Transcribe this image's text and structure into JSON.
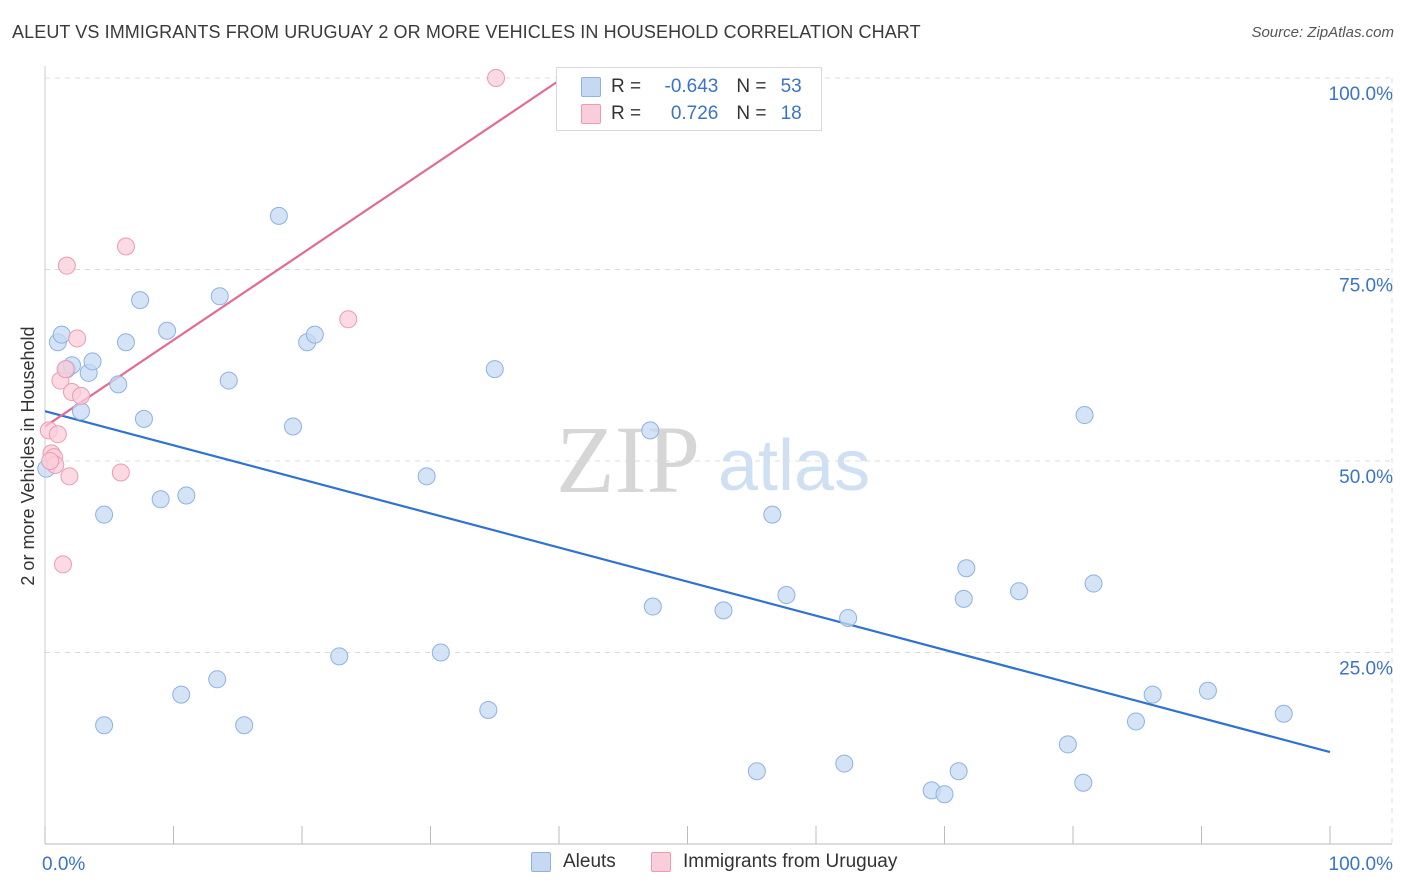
{
  "title": "ALEUT VS IMMIGRANTS FROM URUGUAY 2 OR MORE VEHICLES IN HOUSEHOLD CORRELATION CHART",
  "source": "Source: ZipAtlas.com",
  "watermark": {
    "zip": "ZIP",
    "atlas": "atlas"
  },
  "legend_top": [
    {
      "r_label": "R = ",
      "r_value": "-0.643",
      "n_label": "N = ",
      "n_value": "53",
      "color": "#a9c7ee"
    },
    {
      "r_label": "R = ",
      "r_value": "0.726",
      "n_label": "N = ",
      "n_value": "18",
      "color": "#f7b8cb"
    }
  ],
  "legend_bottom": [
    {
      "label": "Aleuts",
      "color": "#a9c7ee"
    },
    {
      "label": "Immigrants from Uruguay",
      "color": "#f7b8cb"
    }
  ],
  "colors": {
    "blue_fill": "#c5d9f3",
    "blue_stroke": "#8fb2e2",
    "blue_line": "#2f72d0",
    "pink_fill": "#f9cdd9",
    "pink_stroke": "#ee9ab4",
    "pink_line": "#e36a92",
    "tick_label": "#3a74c8",
    "grid": "#dcdcdc"
  },
  "chart_data": {
    "type": "scatter",
    "xlabel": "",
    "ylabel": "2 or more Vehicles in Household",
    "xlim": [
      0,
      100
    ],
    "ylim": [
      0,
      100
    ],
    "x_tick_labels": [
      {
        "value": 0,
        "label": "0.0%"
      },
      {
        "value": 100,
        "label": "100.0%"
      }
    ],
    "y_tick_labels": [
      {
        "value": 100,
        "label": "100.0%"
      },
      {
        "value": 75,
        "label": "75.0%"
      },
      {
        "value": 50,
        "label": "50.0%"
      },
      {
        "value": 25,
        "label": "25.0%"
      }
    ],
    "series": [
      {
        "name": "Aleuts",
        "points": [
          {
            "x": 0.1,
            "y": 49.0
          },
          {
            "x": 1.0,
            "y": 65.5
          },
          {
            "x": 1.3,
            "y": 66.5
          },
          {
            "x": 1.7,
            "y": 62.0
          },
          {
            "x": 2.1,
            "y": 62.5
          },
          {
            "x": 2.8,
            "y": 56.5
          },
          {
            "x": 3.4,
            "y": 61.5
          },
          {
            "x": 3.7,
            "y": 63.0
          },
          {
            "x": 4.6,
            "y": 43.0
          },
          {
            "x": 4.6,
            "y": 15.5
          },
          {
            "x": 5.7,
            "y": 60.0
          },
          {
            "x": 6.3,
            "y": 65.5
          },
          {
            "x": 7.4,
            "y": 71.0
          },
          {
            "x": 7.7,
            "y": 55.5
          },
          {
            "x": 9.0,
            "y": 45.0
          },
          {
            "x": 9.5,
            "y": 67.0
          },
          {
            "x": 10.6,
            "y": 19.5
          },
          {
            "x": 11.0,
            "y": 45.5
          },
          {
            "x": 13.4,
            "y": 21.5
          },
          {
            "x": 13.6,
            "y": 71.5
          },
          {
            "x": 14.3,
            "y": 60.5
          },
          {
            "x": 15.5,
            "y": 15.5
          },
          {
            "x": 18.2,
            "y": 82.0
          },
          {
            "x": 19.3,
            "y": 54.5
          },
          {
            "x": 20.4,
            "y": 65.5
          },
          {
            "x": 21.0,
            "y": 66.5
          },
          {
            "x": 22.9,
            "y": 24.5
          },
          {
            "x": 29.7,
            "y": 48.0
          },
          {
            "x": 30.8,
            "y": 25.0
          },
          {
            "x": 34.5,
            "y": 17.5
          },
          {
            "x": 35.0,
            "y": 62.0
          },
          {
            "x": 47.1,
            "y": 54.0
          },
          {
            "x": 47.3,
            "y": 31.0
          },
          {
            "x": 52.8,
            "y": 30.5
          },
          {
            "x": 55.4,
            "y": 9.5
          },
          {
            "x": 56.6,
            "y": 43.0
          },
          {
            "x": 57.7,
            "y": 32.5
          },
          {
            "x": 62.2,
            "y": 10.5
          },
          {
            "x": 62.5,
            "y": 29.5
          },
          {
            "x": 69.0,
            "y": 7.0
          },
          {
            "x": 70.0,
            "y": 6.5
          },
          {
            "x": 71.1,
            "y": 9.5
          },
          {
            "x": 71.5,
            "y": 32.0
          },
          {
            "x": 71.7,
            "y": 36.0
          },
          {
            "x": 75.8,
            "y": 33.0
          },
          {
            "x": 79.6,
            "y": 13.0
          },
          {
            "x": 80.8,
            "y": 8.0
          },
          {
            "x": 80.9,
            "y": 56.0
          },
          {
            "x": 81.6,
            "y": 34.0
          },
          {
            "x": 84.9,
            "y": 16.0
          },
          {
            "x": 86.2,
            "y": 19.5
          },
          {
            "x": 90.5,
            "y": 20.0
          },
          {
            "x": 96.4,
            "y": 17.0
          }
        ],
        "trend": {
          "x": [
            0,
            100
          ],
          "y": [
            56.5,
            12.0
          ]
        }
      },
      {
        "name": "Immigrants from Uruguay",
        "points": [
          {
            "x": 0.3,
            "y": 54.0
          },
          {
            "x": 0.5,
            "y": 51.0
          },
          {
            "x": 0.7,
            "y": 50.5
          },
          {
            "x": 0.8,
            "y": 49.5
          },
          {
            "x": 1.0,
            "y": 53.5
          },
          {
            "x": 1.2,
            "y": 60.5
          },
          {
            "x": 1.4,
            "y": 36.5
          },
          {
            "x": 1.6,
            "y": 62.0
          },
          {
            "x": 1.7,
            "y": 75.5
          },
          {
            "x": 1.9,
            "y": 48.0
          },
          {
            "x": 2.1,
            "y": 59.0
          },
          {
            "x": 2.5,
            "y": 66.0
          },
          {
            "x": 2.8,
            "y": 58.5
          },
          {
            "x": 5.9,
            "y": 48.5
          },
          {
            "x": 6.3,
            "y": 78.0
          },
          {
            "x": 23.6,
            "y": 68.5
          },
          {
            "x": 35.1,
            "y": 100.0
          },
          {
            "x": 0.4,
            "y": 50.0
          }
        ],
        "trend": {
          "x": [
            0,
            40.3
          ],
          "y": [
            54.5,
            100.0
          ]
        }
      }
    ]
  }
}
